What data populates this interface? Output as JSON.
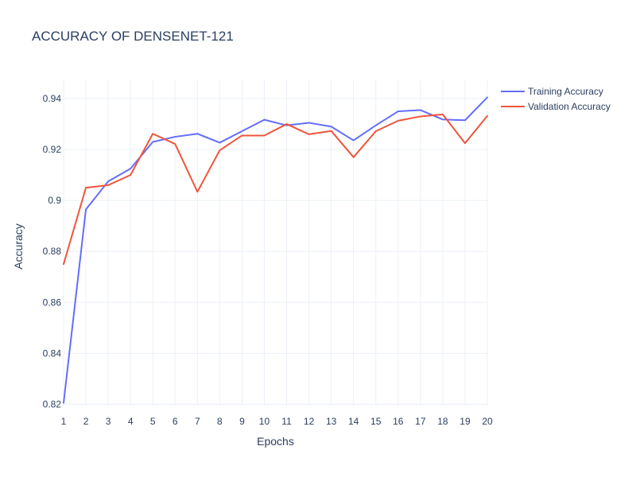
{
  "chart_data": {
    "type": "line",
    "title": "ACCURACY OF DENSENET-121",
    "xlabel": "Epochs",
    "ylabel": "Accuracy",
    "x": [
      1,
      2,
      3,
      4,
      5,
      6,
      7,
      8,
      9,
      10,
      11,
      12,
      13,
      14,
      15,
      16,
      17,
      18,
      19,
      20
    ],
    "x_ticks": [
      "1",
      "2",
      "3",
      "4",
      "5",
      "6",
      "7",
      "8",
      "9",
      "10",
      "11",
      "12",
      "13",
      "14",
      "15",
      "16",
      "17",
      "18",
      "19",
      "20"
    ],
    "y_ticks": [
      {
        "value": 0.82,
        "label": "0.82"
      },
      {
        "value": 0.84,
        "label": "0.84"
      },
      {
        "value": 0.86,
        "label": "0.86"
      },
      {
        "value": 0.88,
        "label": "0.88"
      },
      {
        "value": 0.9,
        "label": "0.9"
      },
      {
        "value": 0.92,
        "label": "0.92"
      },
      {
        "value": 0.94,
        "label": "0.94"
      }
    ],
    "xlim": [
      1,
      20
    ],
    "ylim": [
      0.8195,
      0.9475
    ],
    "grid": true,
    "legend_position": "top-right",
    "series": [
      {
        "name": "Training Accuracy",
        "color": "#636efa",
        "values": [
          0.8205,
          0.8965,
          0.9075,
          0.9125,
          0.923,
          0.925,
          0.9262,
          0.9227,
          0.9272,
          0.9317,
          0.9295,
          0.9305,
          0.929,
          0.9236,
          0.9295,
          0.935,
          0.9355,
          0.9318,
          0.9315,
          0.9405
        ]
      },
      {
        "name": "Validation Accuracy",
        "color": "#ef553b",
        "values": [
          0.875,
          0.905,
          0.906,
          0.91,
          0.9262,
          0.9222,
          0.9034,
          0.9197,
          0.9255,
          0.9255,
          0.93,
          0.926,
          0.9273,
          0.917,
          0.9272,
          0.9313,
          0.933,
          0.9338,
          0.9225,
          0.9332
        ]
      }
    ]
  }
}
